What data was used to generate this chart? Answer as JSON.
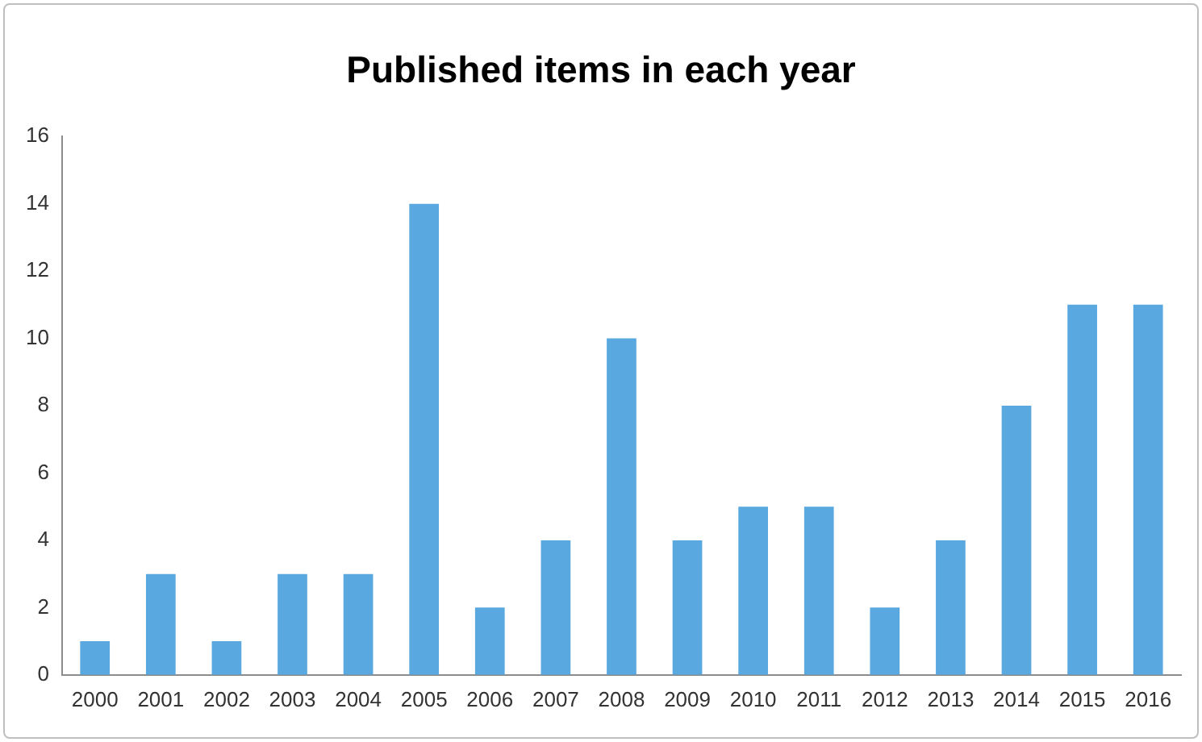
{
  "chart_data": {
    "type": "bar",
    "title": "Published items in each year",
    "categories": [
      "2000",
      "2001",
      "2002",
      "2003",
      "2004",
      "2005",
      "2006",
      "2007",
      "2008",
      "2009",
      "2010",
      "2011",
      "2012",
      "2013",
      "2014",
      "2015",
      "2016"
    ],
    "values": [
      1,
      3,
      1,
      3,
      3,
      14,
      2,
      4,
      10,
      4,
      5,
      5,
      2,
      4,
      8,
      11,
      11
    ],
    "color": "#5aa8e0",
    "ylim": [
      0,
      16
    ],
    "yticks": [
      0,
      2,
      4,
      6,
      8,
      10,
      12,
      14,
      16
    ],
    "grid": false,
    "legend": false
  }
}
